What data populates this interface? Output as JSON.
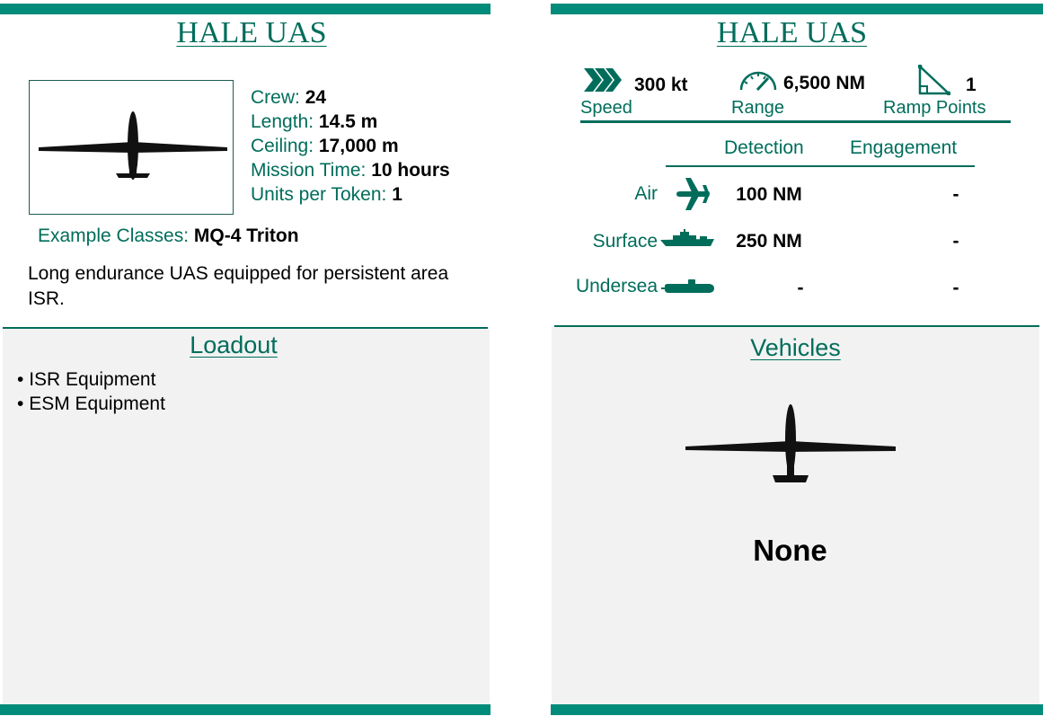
{
  "left_card": {
    "title": "HALE UAS",
    "image_icon": "uav-silhouette-icon",
    "stats": [
      {
        "label": "Crew: ",
        "value": "24"
      },
      {
        "label": "Length: ",
        "value": "14.5 m"
      },
      {
        "label": "Ceiling: ",
        "value": "17,000 m"
      },
      {
        "label": "Mission Time: ",
        "value": "10 hours"
      },
      {
        "label": "Units per Token: ",
        "value": "1"
      }
    ],
    "example_label": "Example Classes: ",
    "example_value": "MQ-4 Triton",
    "description": "Long endurance UAS equipped for persistent area ISR.",
    "loadout": {
      "title": "Loadout",
      "items": [
        "ISR Equipment",
        "ESM Equipment"
      ]
    }
  },
  "right_card": {
    "title": "HALE UAS",
    "speed": {
      "value": "300 kt",
      "label": "Speed",
      "icon": "chevrons-right-icon"
    },
    "range": {
      "value": "6,500 NM",
      "label": "Range",
      "icon": "gauge-icon"
    },
    "ramp": {
      "value": "1",
      "label": "Ramp Points",
      "icon": "ramp-icon"
    },
    "table": {
      "headers": [
        "Detection",
        "Engagement"
      ],
      "rows": [
        {
          "label": "Air",
          "icon": "aircraft-icon",
          "detection": "100 NM",
          "engagement": "-"
        },
        {
          "label": "Surface",
          "icon": "ship-icon",
          "detection": "250 NM",
          "engagement": "-"
        },
        {
          "label": "Undersea",
          "icon": "submarine-icon",
          "detection": "-",
          "engagement": "-"
        }
      ]
    },
    "vehicles": {
      "title": "Vehicles",
      "image_icon": "uav-silhouette-icon",
      "value": "None"
    }
  },
  "colors": {
    "accent": "#008b7a",
    "text_accent": "#006d5b",
    "panel": "#f2f2f2"
  }
}
